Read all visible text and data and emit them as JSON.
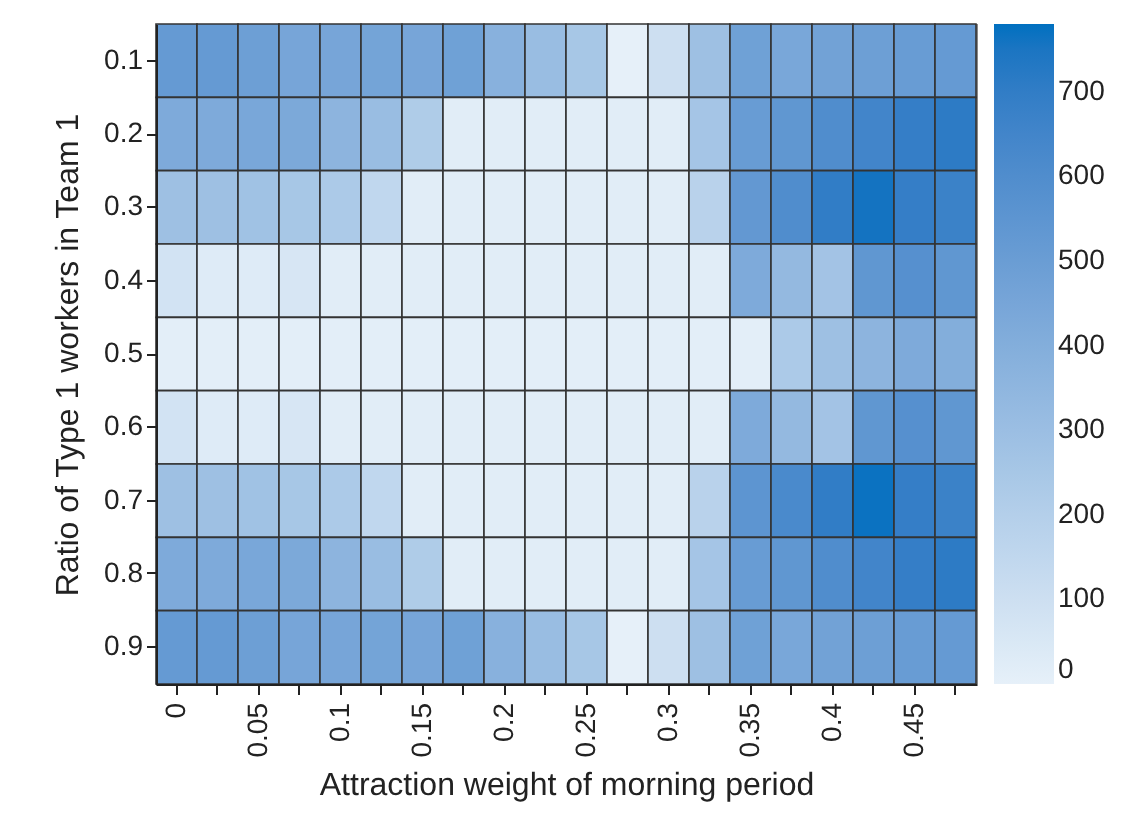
{
  "chart_data": {
    "type": "heatmap",
    "xlabel": "Attraction weight of morning period",
    "ylabel": "Ratio of Type 1 workers in Team 1",
    "categories": [
      "0",
      null,
      "0.05",
      null,
      "0.1",
      null,
      "0.15",
      null,
      "0.2",
      null,
      "0.25",
      null,
      "0.3",
      null,
      "0.35",
      null,
      "0.4",
      null,
      "0.45",
      null
    ],
    "y_categories": [
      "0.1",
      "0.2",
      "0.3",
      "0.4",
      "0.5",
      "0.6",
      "0.7",
      "0.8",
      "0.9"
    ],
    "cells": [
      [
        520,
        520,
        490,
        450,
        450,
        460,
        450,
        480,
        380,
        310,
        250,
        0,
        100,
        290,
        480,
        440,
        470,
        490,
        510,
        520
      ],
      [
        420,
        420,
        440,
        430,
        360,
        310,
        220,
        20,
        20,
        20,
        20,
        20,
        20,
        260,
        510,
        540,
        600,
        650,
        690,
        710
      ],
      [
        290,
        290,
        280,
        250,
        230,
        150,
        20,
        20,
        20,
        20,
        20,
        20,
        20,
        180,
        530,
        600,
        700,
        760,
        690,
        670
      ],
      [
        80,
        30,
        30,
        60,
        20,
        20,
        20,
        20,
        20,
        20,
        20,
        20,
        20,
        20,
        420,
        330,
        270,
        540,
        580,
        540
      ],
      [
        10,
        10,
        10,
        10,
        10,
        10,
        10,
        10,
        10,
        10,
        10,
        10,
        10,
        10,
        10,
        230,
        290,
        360,
        420,
        400
      ],
      [
        80,
        30,
        30,
        60,
        20,
        20,
        20,
        20,
        20,
        20,
        20,
        20,
        20,
        20,
        420,
        330,
        270,
        540,
        580,
        540
      ],
      [
        290,
        290,
        280,
        250,
        230,
        150,
        20,
        20,
        20,
        20,
        20,
        20,
        20,
        180,
        550,
        620,
        700,
        770,
        690,
        670
      ],
      [
        420,
        420,
        440,
        430,
        360,
        310,
        220,
        20,
        20,
        20,
        20,
        20,
        20,
        260,
        510,
        540,
        600,
        650,
        690,
        710
      ],
      [
        520,
        520,
        490,
        450,
        450,
        460,
        450,
        480,
        380,
        310,
        250,
        0,
        100,
        290,
        480,
        440,
        470,
        490,
        510,
        520
      ]
    ],
    "clim": [
      0,
      780
    ],
    "cticks": [
      0,
      100,
      200,
      300,
      400,
      500,
      600,
      700
    ],
    "colors": [
      "#e6f0f9",
      "#0070c0"
    ]
  }
}
